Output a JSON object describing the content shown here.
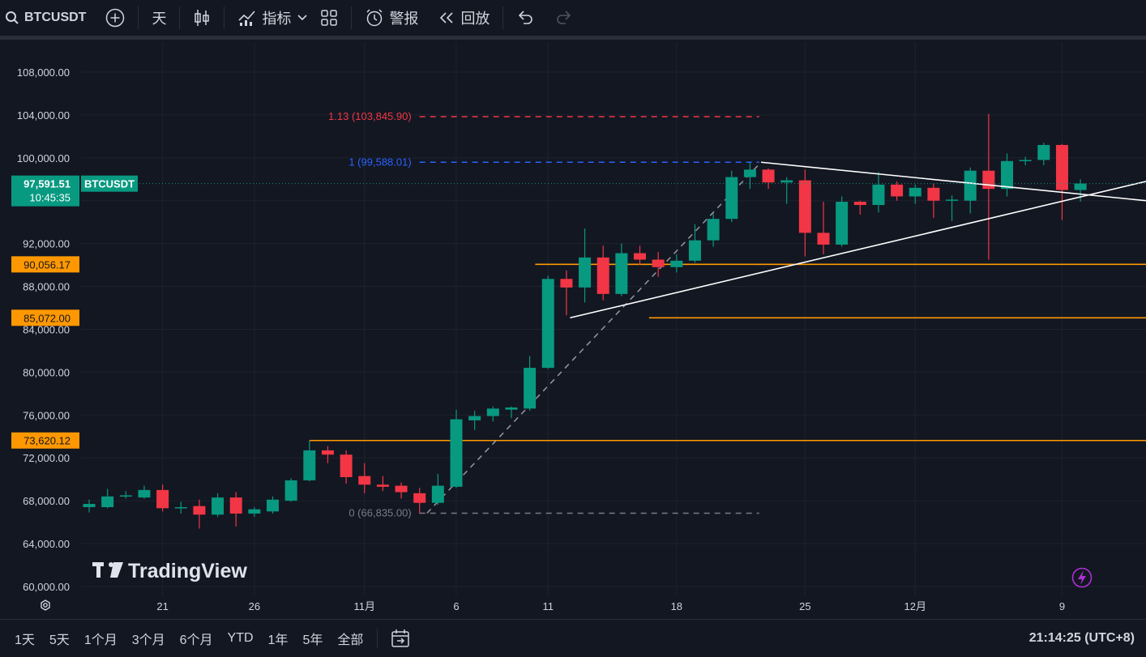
{
  "toolbar": {
    "symbol": "BTCUSDT",
    "interval": "天",
    "indicators_label": "指标",
    "alerts_label": "警报",
    "replay_label": "回放"
  },
  "chart": {
    "symbol_tag": "BTCUSDT",
    "last_price": "97,591.51",
    "countdown": "10:45:35",
    "watermark": "TradingView",
    "colors": {
      "up": "#089981",
      "down": "#f23645",
      "level": "#ff9800",
      "fib_top": "#f23645",
      "fib_mid": "#2962ff",
      "fib_base": "#787b86",
      "trend": "#ffffff",
      "grid": "#1e222d",
      "bg": "#131722"
    },
    "price_tags": [
      {
        "price": 90056.17,
        "label": "90,056.17"
      },
      {
        "price": 85072.0,
        "label": "85,072.00"
      },
      {
        "price": 73620.12,
        "label": "73,620.12"
      }
    ],
    "fib_labels": [
      {
        "price": 103845.9,
        "label": "1.13 (103,845.90)",
        "role": "top"
      },
      {
        "price": 99588.01,
        "label": "1 (99,588.01)",
        "role": "mid"
      },
      {
        "price": 66835.0,
        "label": "0 (66,835.00)",
        "role": "base"
      }
    ]
  },
  "chart_data": {
    "type": "candlestick",
    "y_ticks": [
      "108,000.00",
      "104,000.00",
      "100,000.00",
      "92,000.00",
      "88,000.00",
      "84,000.00",
      "80,000.00",
      "76,000.00",
      "72,000.00",
      "68,000.00",
      "64,000.00",
      "60,000.00"
    ],
    "y_tick_values": [
      108000,
      104000,
      100000,
      92000,
      88000,
      84000,
      80000,
      76000,
      72000,
      68000,
      64000,
      60000
    ],
    "x_ticks": [
      {
        "label": "21",
        "index": 4
      },
      {
        "label": "26",
        "index": 9
      },
      {
        "label": "11月",
        "index": 15
      },
      {
        "label": "6",
        "index": 20
      },
      {
        "label": "11",
        "index": 25
      },
      {
        "label": "18",
        "index": 32
      },
      {
        "label": "25",
        "index": 39
      },
      {
        "label": "12月",
        "index": 45
      },
      {
        "label": "9",
        "index": 53
      }
    ],
    "ylim": [
      59000,
      110000
    ],
    "candles": [
      {
        "o": 67400,
        "h": 68100,
        "l": 66900,
        "c": 67700
      },
      {
        "o": 67400,
        "h": 69100,
        "l": 67300,
        "c": 68400
      },
      {
        "o": 68400,
        "h": 68900,
        "l": 68200,
        "c": 68500
      },
      {
        "o": 68300,
        "h": 69400,
        "l": 68200,
        "c": 69000
      },
      {
        "o": 69000,
        "h": 69500,
        "l": 67000,
        "c": 67300
      },
      {
        "o": 67300,
        "h": 67900,
        "l": 66800,
        "c": 67400
      },
      {
        "o": 67500,
        "h": 68100,
        "l": 65400,
        "c": 66700
      },
      {
        "o": 66700,
        "h": 68700,
        "l": 66500,
        "c": 68300
      },
      {
        "o": 68300,
        "h": 68800,
        "l": 65600,
        "c": 66800
      },
      {
        "o": 66800,
        "h": 67400,
        "l": 66500,
        "c": 67200
      },
      {
        "o": 67000,
        "h": 68400,
        "l": 66800,
        "c": 68100
      },
      {
        "o": 68000,
        "h": 70100,
        "l": 67900,
        "c": 69900
      },
      {
        "o": 69900,
        "h": 73600,
        "l": 69800,
        "c": 72700
      },
      {
        "o": 72700,
        "h": 73100,
        "l": 71500,
        "c": 72300
      },
      {
        "o": 72300,
        "h": 72700,
        "l": 69600,
        "c": 70200
      },
      {
        "o": 70300,
        "h": 71500,
        "l": 68700,
        "c": 69500
      },
      {
        "o": 69500,
        "h": 70300,
        "l": 68900,
        "c": 69300
      },
      {
        "o": 69400,
        "h": 69700,
        "l": 68200,
        "c": 68800
      },
      {
        "o": 68700,
        "h": 69200,
        "l": 66800,
        "c": 67800
      },
      {
        "o": 67800,
        "h": 70500,
        "l": 67600,
        "c": 69400
      },
      {
        "o": 69300,
        "h": 76500,
        "l": 69200,
        "c": 75600
      },
      {
        "o": 75500,
        "h": 76400,
        "l": 74600,
        "c": 75900
      },
      {
        "o": 75900,
        "h": 76800,
        "l": 75400,
        "c": 76600
      },
      {
        "o": 76500,
        "h": 76800,
        "l": 75700,
        "c": 76700
      },
      {
        "o": 76600,
        "h": 81500,
        "l": 76400,
        "c": 80400
      },
      {
        "o": 80400,
        "h": 89000,
        "l": 80300,
        "c": 88700
      },
      {
        "o": 88700,
        "h": 89500,
        "l": 85300,
        "c": 87900
      },
      {
        "o": 87900,
        "h": 93400,
        "l": 86500,
        "c": 90700
      },
      {
        "o": 90700,
        "h": 91800,
        "l": 86700,
        "c": 87300
      },
      {
        "o": 87300,
        "h": 92000,
        "l": 87100,
        "c": 91100
      },
      {
        "o": 91100,
        "h": 91800,
        "l": 90000,
        "c": 90500
      },
      {
        "o": 90500,
        "h": 91200,
        "l": 88900,
        "c": 89800
      },
      {
        "o": 89800,
        "h": 91000,
        "l": 89300,
        "c": 90400
      },
      {
        "o": 90400,
        "h": 93800,
        "l": 90200,
        "c": 92300
      },
      {
        "o": 92300,
        "h": 94800,
        "l": 91700,
        "c": 94300
      },
      {
        "o": 94300,
        "h": 98800,
        "l": 94000,
        "c": 98200
      },
      {
        "o": 98200,
        "h": 99600,
        "l": 97100,
        "c": 98900
      },
      {
        "o": 98900,
        "h": 99000,
        "l": 97100,
        "c": 97700
      },
      {
        "o": 97700,
        "h": 98200,
        "l": 95700,
        "c": 97900
      },
      {
        "o": 97900,
        "h": 98900,
        "l": 90800,
        "c": 93000
      },
      {
        "o": 93000,
        "h": 95900,
        "l": 91000,
        "c": 91900
      },
      {
        "o": 91900,
        "h": 96400,
        "l": 91700,
        "c": 95900
      },
      {
        "o": 95900,
        "h": 96000,
        "l": 94700,
        "c": 95600
      },
      {
        "o": 95600,
        "h": 98700,
        "l": 94900,
        "c": 97500
      },
      {
        "o": 97500,
        "h": 97800,
        "l": 96000,
        "c": 96400
      },
      {
        "o": 96400,
        "h": 97500,
        "l": 95700,
        "c": 97200
      },
      {
        "o": 97200,
        "h": 97600,
        "l": 94400,
        "c": 96000
      },
      {
        "o": 96000,
        "h": 96500,
        "l": 94100,
        "c": 96100
      },
      {
        "o": 96000,
        "h": 99100,
        "l": 94800,
        "c": 98800
      },
      {
        "o": 98800,
        "h": 104100,
        "l": 90500,
        "c": 97100
      },
      {
        "o": 97100,
        "h": 100400,
        "l": 96400,
        "c": 99700
      },
      {
        "o": 99700,
        "h": 100100,
        "l": 99300,
        "c": 99800
      },
      {
        "o": 99800,
        "h": 101400,
        "l": 99300,
        "c": 101200
      },
      {
        "o": 101200,
        "h": 101300,
        "l": 94200,
        "c": 97000
      },
      {
        "o": 97000,
        "h": 98000,
        "l": 95900,
        "c": 97600
      }
    ]
  },
  "bottom": {
    "ranges": [
      "1天",
      "5天",
      "1个月",
      "3个月",
      "6个月",
      "YTD",
      "1年",
      "5年",
      "全部"
    ],
    "time": "21:14:25 (UTC+8)"
  }
}
